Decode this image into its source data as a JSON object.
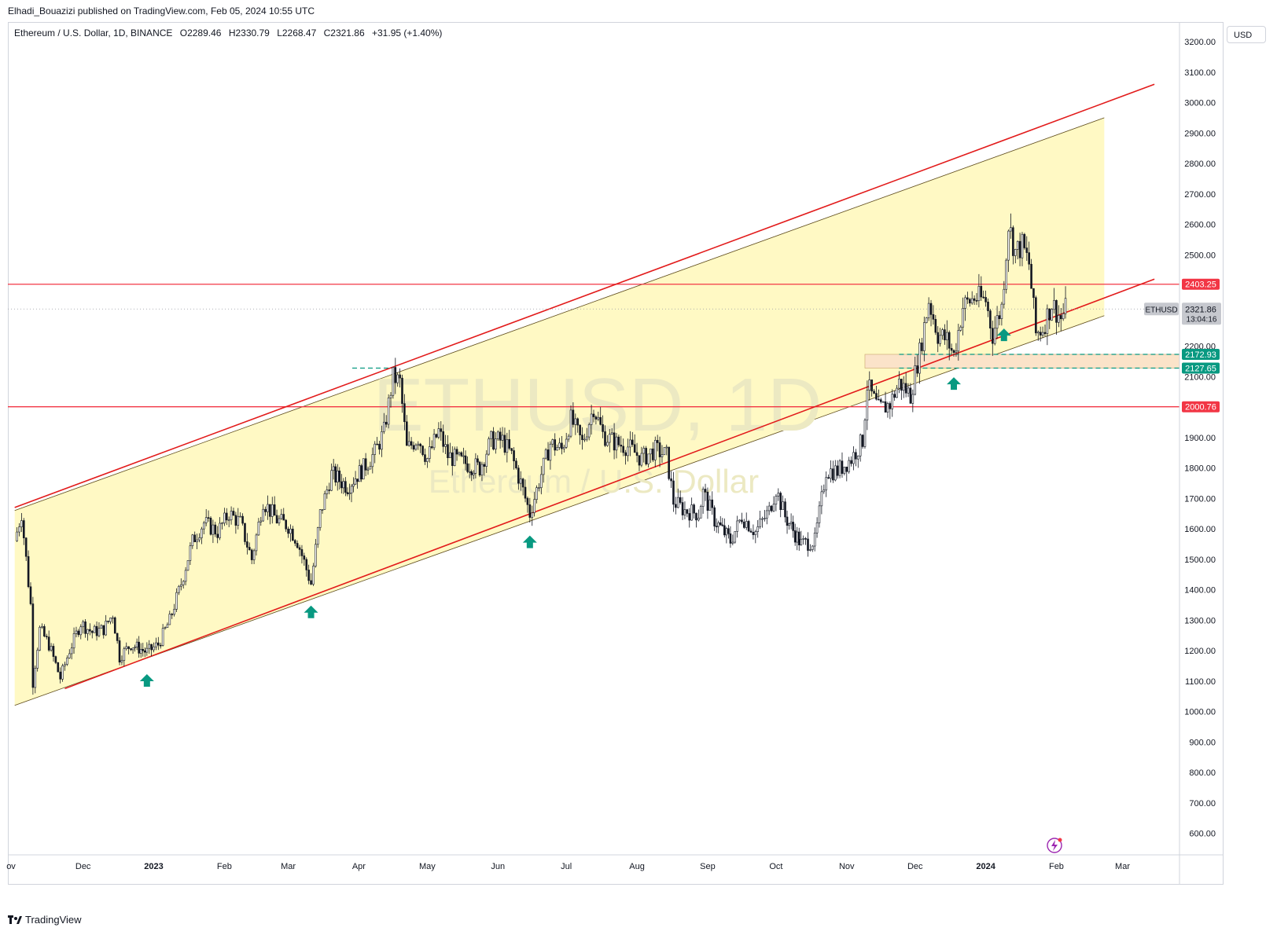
{
  "publisher_line": "Elhadi_Bouazizi published on TradingView.com, Feb 05, 2024 10:55 UTC",
  "header": {
    "symbol_description": "Ethereum / U.S. Dollar, 1D, BINANCE",
    "open": "O2289.46",
    "high": "H2330.79",
    "low": "L2268.47",
    "close": "C2321.86",
    "change": "+31.95 (+1.40%)"
  },
  "currency": "USD",
  "watermark": {
    "symbol": "ETHUSD, 1D",
    "description": "Ethereum / U.S. Dollar"
  },
  "footer": {
    "brand": "TradingView",
    "logo_icon": "tradingview-logo-icon"
  },
  "colors": {
    "channel_fill": "#fff9c4",
    "channel_line": "#e21b1b",
    "support_zone": "#fbe3c9",
    "green": "#089981",
    "red": "#f23645",
    "candle": "#131722"
  },
  "chart_data": {
    "type": "candlestick",
    "symbol": "ETHUSD",
    "interval": "1D",
    "exchange": "BINANCE",
    "last_price": 2321.86,
    "countdown": "13:04:16",
    "y_ticks": [
      600,
      700,
      800,
      900,
      1000,
      1100,
      1200,
      1300,
      1400,
      1500,
      1600,
      1700,
      1800,
      1900,
      2000,
      2100,
      2200,
      2300,
      2400,
      2500,
      2600,
      2700,
      2800,
      2900,
      3000,
      3100,
      3200
    ],
    "x_ticks": [
      "ov",
      "Dec",
      "2023",
      "Feb",
      "Mar",
      "Apr",
      "May",
      "Jun",
      "Jul",
      "Aug",
      "Sep",
      "Oct",
      "Nov",
      "Dec",
      "2024",
      "Feb",
      "Mar"
    ],
    "horizontal_levels": [
      {
        "price": 2403.25,
        "label": "2403.25",
        "style": "solid",
        "color": "#f23645"
      },
      {
        "price": 2000.76,
        "label": "2000.76",
        "style": "solid",
        "color": "#f23645"
      },
      {
        "price": 2172.93,
        "label": "2172.93",
        "style": "dashed",
        "color": "#089981"
      },
      {
        "price": 2127.65,
        "label": "2127.65",
        "style": "dashed",
        "color": "#089981"
      }
    ],
    "channel": {
      "upper": [
        [
          "2022-11-01",
          1660
        ],
        [
          "2024-02-22",
          2950
        ]
      ],
      "lower": [
        [
          "2022-11-01",
          1020
        ],
        [
          "2024-02-22",
          2300
        ]
      ]
    },
    "trend_lines": [
      {
        "from": [
          "2022-11-01",
          1670
        ],
        "to": [
          "2024-03-15",
          3060
        ]
      },
      {
        "from": [
          "2022-11-23",
          1075
        ],
        "to": [
          "2024-03-15",
          2420
        ]
      }
    ],
    "support_markers": [
      "2022-12-29",
      "2023-03-11",
      "2023-06-15",
      "2023-12-18",
      "2024-01-09"
    ],
    "price_series": [
      [
        "2022-11-01",
        1560
      ],
      [
        "2022-11-04",
        1650
      ],
      [
        "2022-11-08",
        1350
      ],
      [
        "2022-11-09",
        1100
      ],
      [
        "2022-11-12",
        1270
      ],
      [
        "2022-11-16",
        1220
      ],
      [
        "2022-11-21",
        1110
      ],
      [
        "2022-11-25",
        1200
      ],
      [
        "2022-11-30",
        1290
      ],
      [
        "2022-12-05",
        1260
      ],
      [
        "2022-12-10",
        1270
      ],
      [
        "2022-12-14",
        1320
      ],
      [
        "2022-12-17",
        1180
      ],
      [
        "2022-12-22",
        1220
      ],
      [
        "2022-12-29",
        1195
      ],
      [
        "2023-01-03",
        1220
      ],
      [
        "2023-01-08",
        1300
      ],
      [
        "2023-01-13",
        1420
      ],
      [
        "2023-01-18",
        1560
      ],
      [
        "2023-01-23",
        1620
      ],
      [
        "2023-01-29",
        1590
      ],
      [
        "2023-02-03",
        1650
      ],
      [
        "2023-02-08",
        1620
      ],
      [
        "2023-02-13",
        1500
      ],
      [
        "2023-02-18",
        1690
      ],
      [
        "2023-02-24",
        1630
      ],
      [
        "2023-03-01",
        1610
      ],
      [
        "2023-03-05",
        1560
      ],
      [
        "2023-03-11",
        1420
      ],
      [
        "2023-03-15",
        1650
      ],
      [
        "2023-03-20",
        1780
      ],
      [
        "2023-03-27",
        1740
      ],
      [
        "2023-04-03",
        1800
      ],
      [
        "2023-04-08",
        1850
      ],
      [
        "2023-04-12",
        1920
      ],
      [
        "2023-04-16",
        2100
      ],
      [
        "2023-04-19",
        2080
      ],
      [
        "2023-04-22",
        1860
      ],
      [
        "2023-04-27",
        1900
      ],
      [
        "2023-05-01",
        1830
      ],
      [
        "2023-05-06",
        1920
      ],
      [
        "2023-05-10",
        1840
      ],
      [
        "2023-05-16",
        1820
      ],
      [
        "2023-05-24",
        1800
      ],
      [
        "2023-05-29",
        1890
      ],
      [
        "2023-06-03",
        1890
      ],
      [
        "2023-06-07",
        1840
      ],
      [
        "2023-06-11",
        1750
      ],
      [
        "2023-06-15",
        1650
      ],
      [
        "2023-06-20",
        1780
      ],
      [
        "2023-06-24",
        1880
      ],
      [
        "2023-06-29",
        1860
      ],
      [
        "2023-07-03",
        1960
      ],
      [
        "2023-07-08",
        1880
      ],
      [
        "2023-07-13",
        2000
      ],
      [
        "2023-07-17",
        1910
      ],
      [
        "2023-07-23",
        1880
      ],
      [
        "2023-07-28",
        1870
      ],
      [
        "2023-08-03",
        1830
      ],
      [
        "2023-08-09",
        1860
      ],
      [
        "2023-08-14",
        1840
      ],
      [
        "2023-08-17",
        1690
      ],
      [
        "2023-08-22",
        1660
      ],
      [
        "2023-08-28",
        1650
      ],
      [
        "2023-08-30",
        1720
      ],
      [
        "2023-09-04",
        1630
      ],
      [
        "2023-09-11",
        1560
      ],
      [
        "2023-09-16",
        1640
      ],
      [
        "2023-09-22",
        1590
      ],
      [
        "2023-09-28",
        1660
      ],
      [
        "2023-10-01",
        1730
      ],
      [
        "2023-10-05",
        1640
      ],
      [
        "2023-10-12",
        1550
      ],
      [
        "2023-10-18",
        1560
      ],
      [
        "2023-10-23",
        1790
      ],
      [
        "2023-10-28",
        1790
      ],
      [
        "2023-11-03",
        1830
      ],
      [
        "2023-11-08",
        1890
      ],
      [
        "2023-11-10",
        2070
      ],
      [
        "2023-11-15",
        1990
      ],
      [
        "2023-11-20",
        2010
      ],
      [
        "2023-11-24",
        2080
      ],
      [
        "2023-11-29",
        2040
      ],
      [
        "2023-12-03",
        2180
      ],
      [
        "2023-12-07",
        2350
      ],
      [
        "2023-12-11",
        2240
      ],
      [
        "2023-12-15",
        2220
      ],
      [
        "2023-12-18",
        2170
      ],
      [
        "2023-12-22",
        2330
      ],
      [
        "2023-12-27",
        2360
      ],
      [
        "2024-01-01",
        2350
      ],
      [
        "2024-01-04",
        2240
      ],
      [
        "2024-01-08",
        2330
      ],
      [
        "2024-01-11",
        2600
      ],
      [
        "2024-01-14",
        2510
      ],
      [
        "2024-01-17",
        2530
      ],
      [
        "2024-01-20",
        2470
      ],
      [
        "2024-01-23",
        2240
      ],
      [
        "2024-01-26",
        2260
      ],
      [
        "2024-01-30",
        2340
      ],
      [
        "2024-02-03",
        2290
      ],
      [
        "2024-02-05",
        2321.86
      ]
    ]
  }
}
